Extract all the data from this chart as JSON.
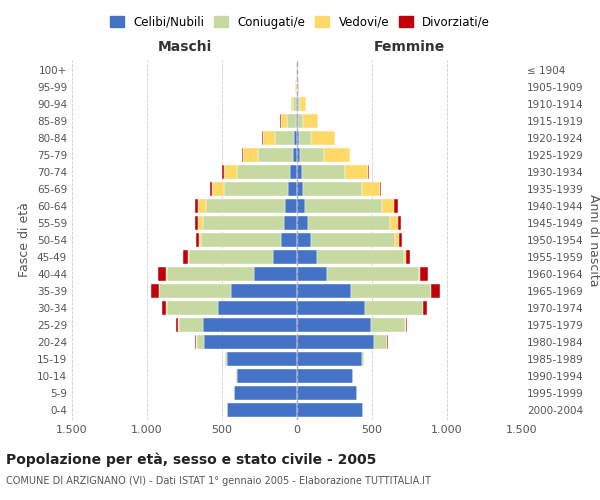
{
  "age_groups": [
    "0-4",
    "5-9",
    "10-14",
    "15-19",
    "20-24",
    "25-29",
    "30-34",
    "35-39",
    "40-44",
    "45-49",
    "50-54",
    "55-59",
    "60-64",
    "65-69",
    "70-74",
    "75-79",
    "80-84",
    "85-89",
    "90-94",
    "95-99",
    "100+"
  ],
  "birth_years": [
    "2000-2004",
    "1995-1999",
    "1990-1994",
    "1985-1989",
    "1980-1984",
    "1975-1979",
    "1970-1974",
    "1965-1969",
    "1960-1964",
    "1955-1959",
    "1950-1954",
    "1945-1949",
    "1940-1944",
    "1935-1939",
    "1930-1934",
    "1925-1929",
    "1920-1924",
    "1915-1919",
    "1910-1914",
    "1905-1909",
    "≤ 1904"
  ],
  "males": {
    "celibi": [
      470,
      420,
      400,
      470,
      620,
      630,
      530,
      440,
      290,
      160,
      110,
      90,
      80,
      60,
      50,
      30,
      20,
      10,
      5,
      3,
      2
    ],
    "coniugati": [
      0,
      2,
      5,
      10,
      50,
      160,
      340,
      480,
      580,
      560,
      530,
      540,
      530,
      430,
      350,
      230,
      130,
      60,
      20,
      5,
      2
    ],
    "vedovi": [
      0,
      0,
      0,
      0,
      2,
      5,
      2,
      2,
      5,
      10,
      15,
      30,
      50,
      80,
      90,
      100,
      80,
      40,
      15,
      3,
      1
    ],
    "divorziati": [
      0,
      0,
      0,
      2,
      5,
      10,
      25,
      50,
      50,
      30,
      20,
      20,
      20,
      10,
      8,
      5,
      3,
      2,
      1,
      0,
      0
    ]
  },
  "females": {
    "nubili": [
      440,
      400,
      370,
      430,
      510,
      490,
      450,
      360,
      200,
      130,
      90,
      70,
      55,
      40,
      30,
      20,
      12,
      8,
      5,
      3,
      2
    ],
    "coniugate": [
      0,
      2,
      5,
      15,
      90,
      230,
      390,
      530,
      610,
      580,
      560,
      550,
      510,
      390,
      290,
      160,
      80,
      30,
      15,
      4,
      2
    ],
    "vedove": [
      0,
      0,
      0,
      0,
      2,
      5,
      3,
      5,
      8,
      15,
      30,
      50,
      80,
      120,
      150,
      170,
      160,
      100,
      40,
      8,
      2
    ],
    "divorziate": [
      0,
      0,
      0,
      2,
      5,
      10,
      25,
      55,
      55,
      30,
      20,
      25,
      25,
      12,
      8,
      5,
      3,
      2,
      1,
      0,
      0
    ]
  },
  "colors": {
    "celibi": "#4472C4",
    "coniugati": "#c5d9a0",
    "vedovi": "#FFD966",
    "divorziati": "#C0000B"
  },
  "legend_labels": [
    "Celibi/Nubili",
    "Coniugati/e",
    "Vedovi/e",
    "Divorziati/e"
  ],
  "title": "Popolazione per età, sesso e stato civile - 2005",
  "subtitle": "COMUNE DI ARZIGNANO (VI) - Dati ISTAT 1° gennaio 2005 - Elaborazione TUTTITALIA.IT",
  "xlabel_left": "Maschi",
  "xlabel_right": "Femmine",
  "ylabel_left": "Fasce di età",
  "ylabel_right": "Anni di nascita",
  "xlim": 1500,
  "background_color": "#ffffff",
  "grid_color": "#cccccc"
}
